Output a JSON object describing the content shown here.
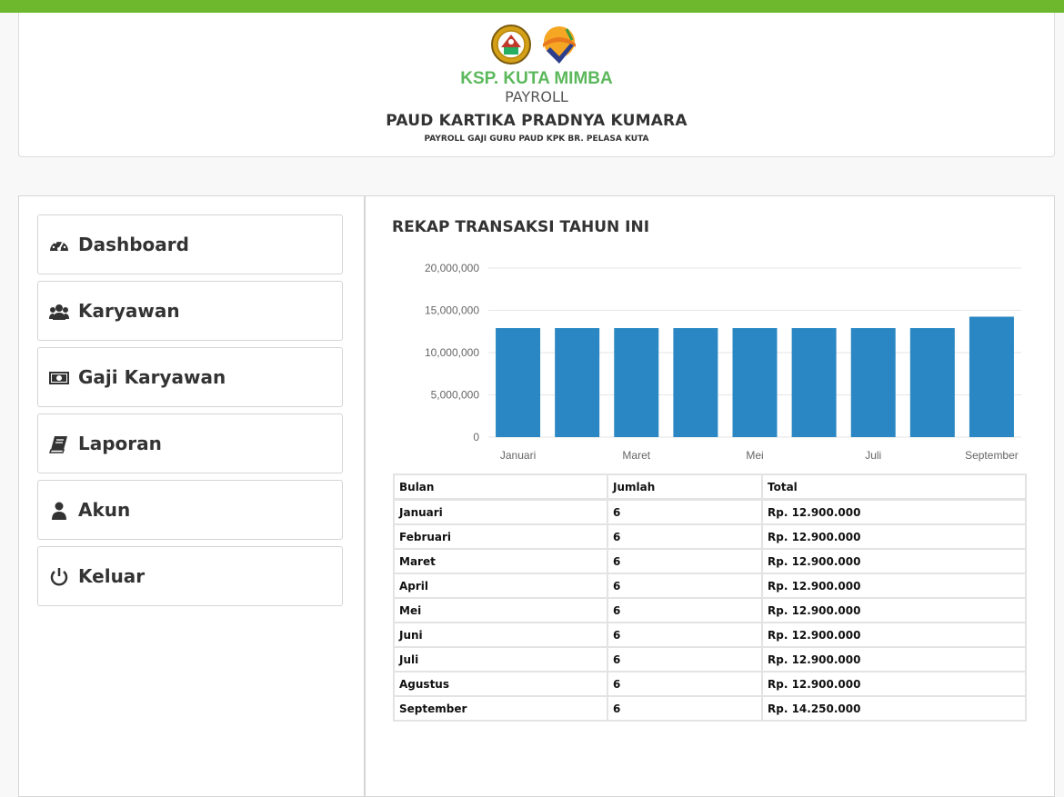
{
  "header": {
    "brand": "KSP. KUTA MIMBA",
    "subtitle": "PAYROLL",
    "school": "PAUD KARTIKA PRADNYA KUMARA",
    "tagline": "PAYROLL GAJI GURU PAUD KPK BR. PELASA KUTA",
    "logo_left_icon": "regional-emblem",
    "logo_right_icon": "koperasi-emblem"
  },
  "sidebar": {
    "items": [
      {
        "label": "Dashboard",
        "icon": "dashboard-gauge-icon"
      },
      {
        "label": "Karyawan",
        "icon": "users-icon"
      },
      {
        "label": "Gaji Karyawan",
        "icon": "money-bill-icon"
      },
      {
        "label": "Laporan",
        "icon": "book-icon"
      },
      {
        "label": "Akun",
        "icon": "user-icon"
      },
      {
        "label": "Keluar",
        "icon": "power-icon"
      }
    ]
  },
  "content": {
    "title": "REKAP TRANSAKSI TAHUN INI"
  },
  "chart_data": {
    "type": "bar",
    "categories": [
      "Januari",
      "Februari",
      "Maret",
      "April",
      "Mei",
      "Juni",
      "Juli",
      "Agustus",
      "September"
    ],
    "x_tick_labels": [
      "Januari",
      "",
      "Maret",
      "",
      "Mei",
      "",
      "Juli",
      "",
      "September"
    ],
    "values": [
      12900000,
      12900000,
      12900000,
      12900000,
      12900000,
      12900000,
      12900000,
      12900000,
      14250000
    ],
    "ylim": [
      0,
      20000000
    ],
    "y_ticks": [
      0,
      5000000,
      10000000,
      15000000,
      20000000
    ],
    "y_tick_labels": [
      "0",
      "5,000,000",
      "10,000,000",
      "15,000,000",
      "20,000,000"
    ],
    "grid": true,
    "bar_color": "#2a87c3",
    "grid_color": "#e6e6e6"
  },
  "table": {
    "headers": [
      "Bulan",
      "Jumlah",
      "Total"
    ],
    "rows": [
      [
        "Januari",
        "6",
        "Rp. 12.900.000"
      ],
      [
        "Februari",
        "6",
        "Rp. 12.900.000"
      ],
      [
        "Maret",
        "6",
        "Rp. 12.900.000"
      ],
      [
        "April",
        "6",
        "Rp. 12.900.000"
      ],
      [
        "Mei",
        "6",
        "Rp. 12.900.000"
      ],
      [
        "Juni",
        "6",
        "Rp. 12.900.000"
      ],
      [
        "Juli",
        "6",
        "Rp. 12.900.000"
      ],
      [
        "Agustus",
        "6",
        "Rp. 12.900.000"
      ],
      [
        "September",
        "6",
        "Rp. 14.250.000"
      ]
    ]
  },
  "colors": {
    "topbar": "#6db82c",
    "brand": "#5cb85c"
  }
}
